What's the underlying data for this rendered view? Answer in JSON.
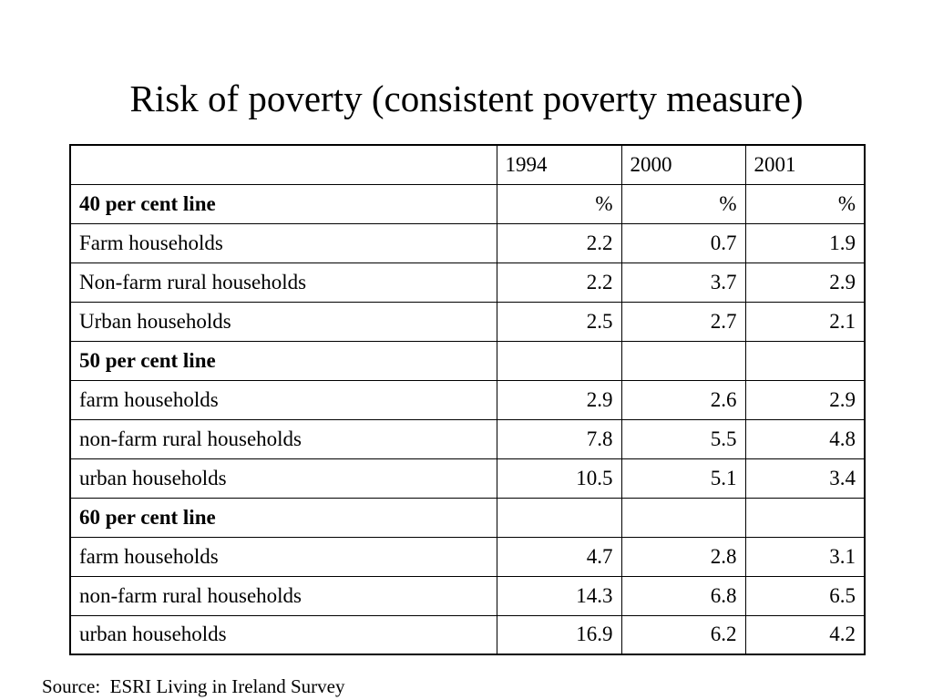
{
  "title": "Risk of poverty (consistent poverty measure)",
  "table": {
    "header": [
      "",
      "1994",
      "2000",
      "2001"
    ],
    "rows": [
      {
        "label": "40 per cent line",
        "bold": true,
        "values": [
          "%",
          "%",
          "%"
        ]
      },
      {
        "label": "Farm households",
        "values": [
          "2.2",
          "0.7",
          "1.9"
        ]
      },
      {
        "label": "Non-farm rural households",
        "values": [
          "2.2",
          "3.7",
          "2.9"
        ]
      },
      {
        "label": "Urban households",
        "values": [
          "2.5",
          "2.7",
          "2.1"
        ]
      },
      {
        "label": "50 per cent line",
        "bold": true,
        "values": [
          "",
          "",
          ""
        ]
      },
      {
        "label": "farm households",
        "values": [
          "2.9",
          "2.6",
          "2.9"
        ]
      },
      {
        "label": "non-farm rural households",
        "values": [
          "7.8",
          "5.5",
          "4.8"
        ]
      },
      {
        "label": "urban households",
        "values": [
          "10.5",
          "5.1",
          "3.4"
        ]
      },
      {
        "label": "60 per cent line",
        "bold": true,
        "values": [
          "",
          "",
          ""
        ]
      },
      {
        "label": "farm households",
        "values": [
          "4.7",
          "2.8",
          "3.1"
        ]
      },
      {
        "label": "non-farm rural households",
        "values": [
          "14.3",
          "6.8",
          "6.5"
        ]
      },
      {
        "label": "urban households",
        "values": [
          "16.9",
          "6.2",
          "4.2"
        ]
      }
    ]
  },
  "source": "Source:  ESRI Living in Ireland Survey"
}
